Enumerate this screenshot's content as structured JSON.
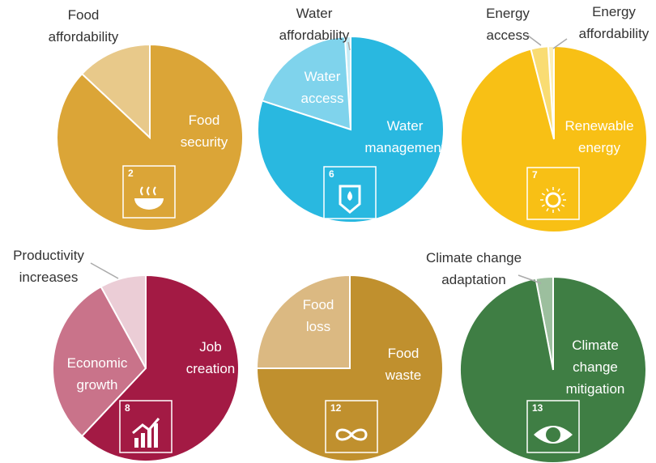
{
  "chart_data": [
    {
      "type": "pie",
      "goal": 2,
      "categories": [
        "Food affordability",
        "Food security"
      ],
      "values": [
        13,
        87
      ],
      "colors": [
        "#e8c98a",
        "#dba537"
      ]
    },
    {
      "type": "pie",
      "goal": 6,
      "categories": [
        "Water affordability",
        "Water access",
        "Water management"
      ],
      "values": [
        1,
        19,
        80
      ],
      "colors": [
        "#c5ecf7",
        "#7fd3ec",
        "#29b8e0"
      ]
    },
    {
      "type": "pie",
      "goal": 7,
      "categories": [
        "Energy affordability",
        "Energy access",
        "Renewable energy"
      ],
      "values": [
        1,
        3,
        96
      ],
      "colors": [
        "#fcefb8",
        "#f9dc73",
        "#f8c015"
      ]
    },
    {
      "type": "pie",
      "goal": 8,
      "categories": [
        "Productivity increases",
        "Economic growth",
        "Job creation"
      ],
      "values": [
        8,
        30,
        62
      ],
      "colors": [
        "#ebcdd6",
        "#c9738a",
        "#a31a44"
      ]
    },
    {
      "type": "pie",
      "goal": 12,
      "categories": [
        "Food loss",
        "Food waste"
      ],
      "values": [
        25,
        75
      ],
      "colors": [
        "#dbb982",
        "#c0902e"
      ]
    },
    {
      "type": "pie",
      "goal": 13,
      "categories": [
        "Climate change adaptation",
        "Climate change mitigation"
      ],
      "values": [
        3,
        97
      ],
      "colors": [
        "#9cbf9e",
        "#3f7e44"
      ]
    }
  ]
}
